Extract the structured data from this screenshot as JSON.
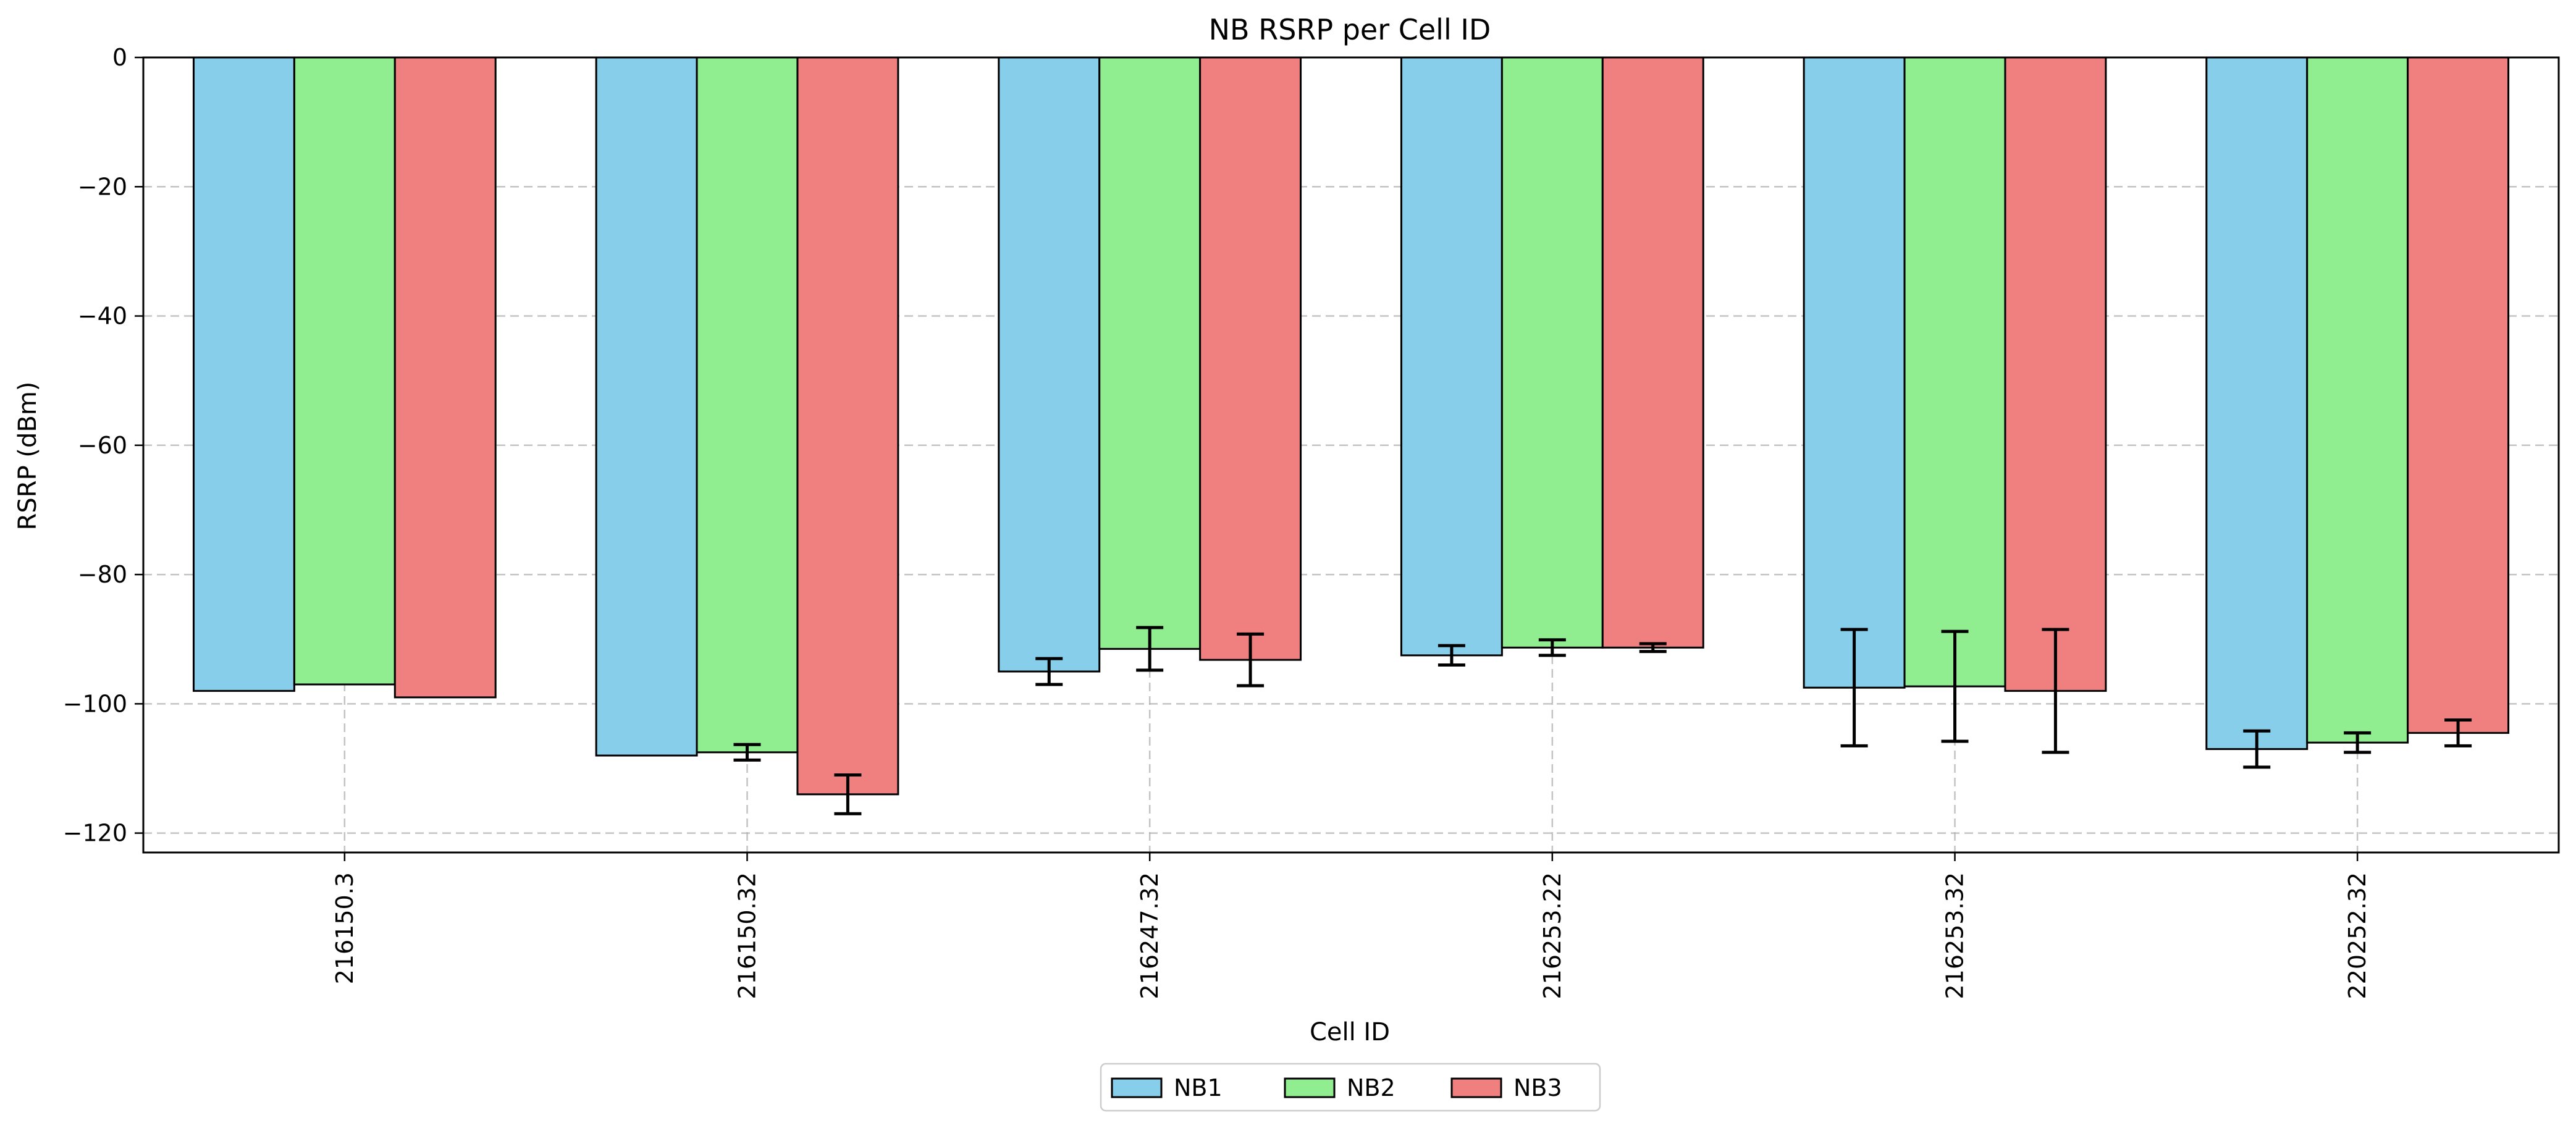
{
  "chart_data": {
    "type": "bar",
    "title": "NB RSRP per Cell ID",
    "xlabel": "Cell ID",
    "ylabel": "RSRP (dBm)",
    "ylim": [
      -123,
      0
    ],
    "yticks": [
      0,
      -20,
      -40,
      -60,
      -80,
      -100,
      -120
    ],
    "categories": [
      "216150.3",
      "216150.32",
      "216247.32",
      "216253.22",
      "216253.32",
      "220252.32"
    ],
    "series": [
      {
        "name": "NB1",
        "color": "#87CEEB",
        "values": [
          -98,
          -108,
          -95,
          -92.5,
          -97.5,
          -107
        ],
        "errors": [
          0,
          0,
          2,
          1.5,
          9,
          2.8
        ]
      },
      {
        "name": "NB2",
        "color": "#90EE90",
        "values": [
          -97,
          -107.5,
          -91.5,
          -91.3,
          -97.3,
          -106
        ],
        "errors": [
          0,
          1.2,
          3.3,
          1.2,
          8.5,
          1.5
        ]
      },
      {
        "name": "NB3",
        "color": "#F08080",
        "values": [
          -99,
          -114,
          -93.2,
          -91.3,
          -98,
          -104.5
        ],
        "errors": [
          0,
          3,
          4,
          0.6,
          9.5,
          2
        ]
      }
    ],
    "grid": true,
    "legend_position": "bottom-center"
  }
}
